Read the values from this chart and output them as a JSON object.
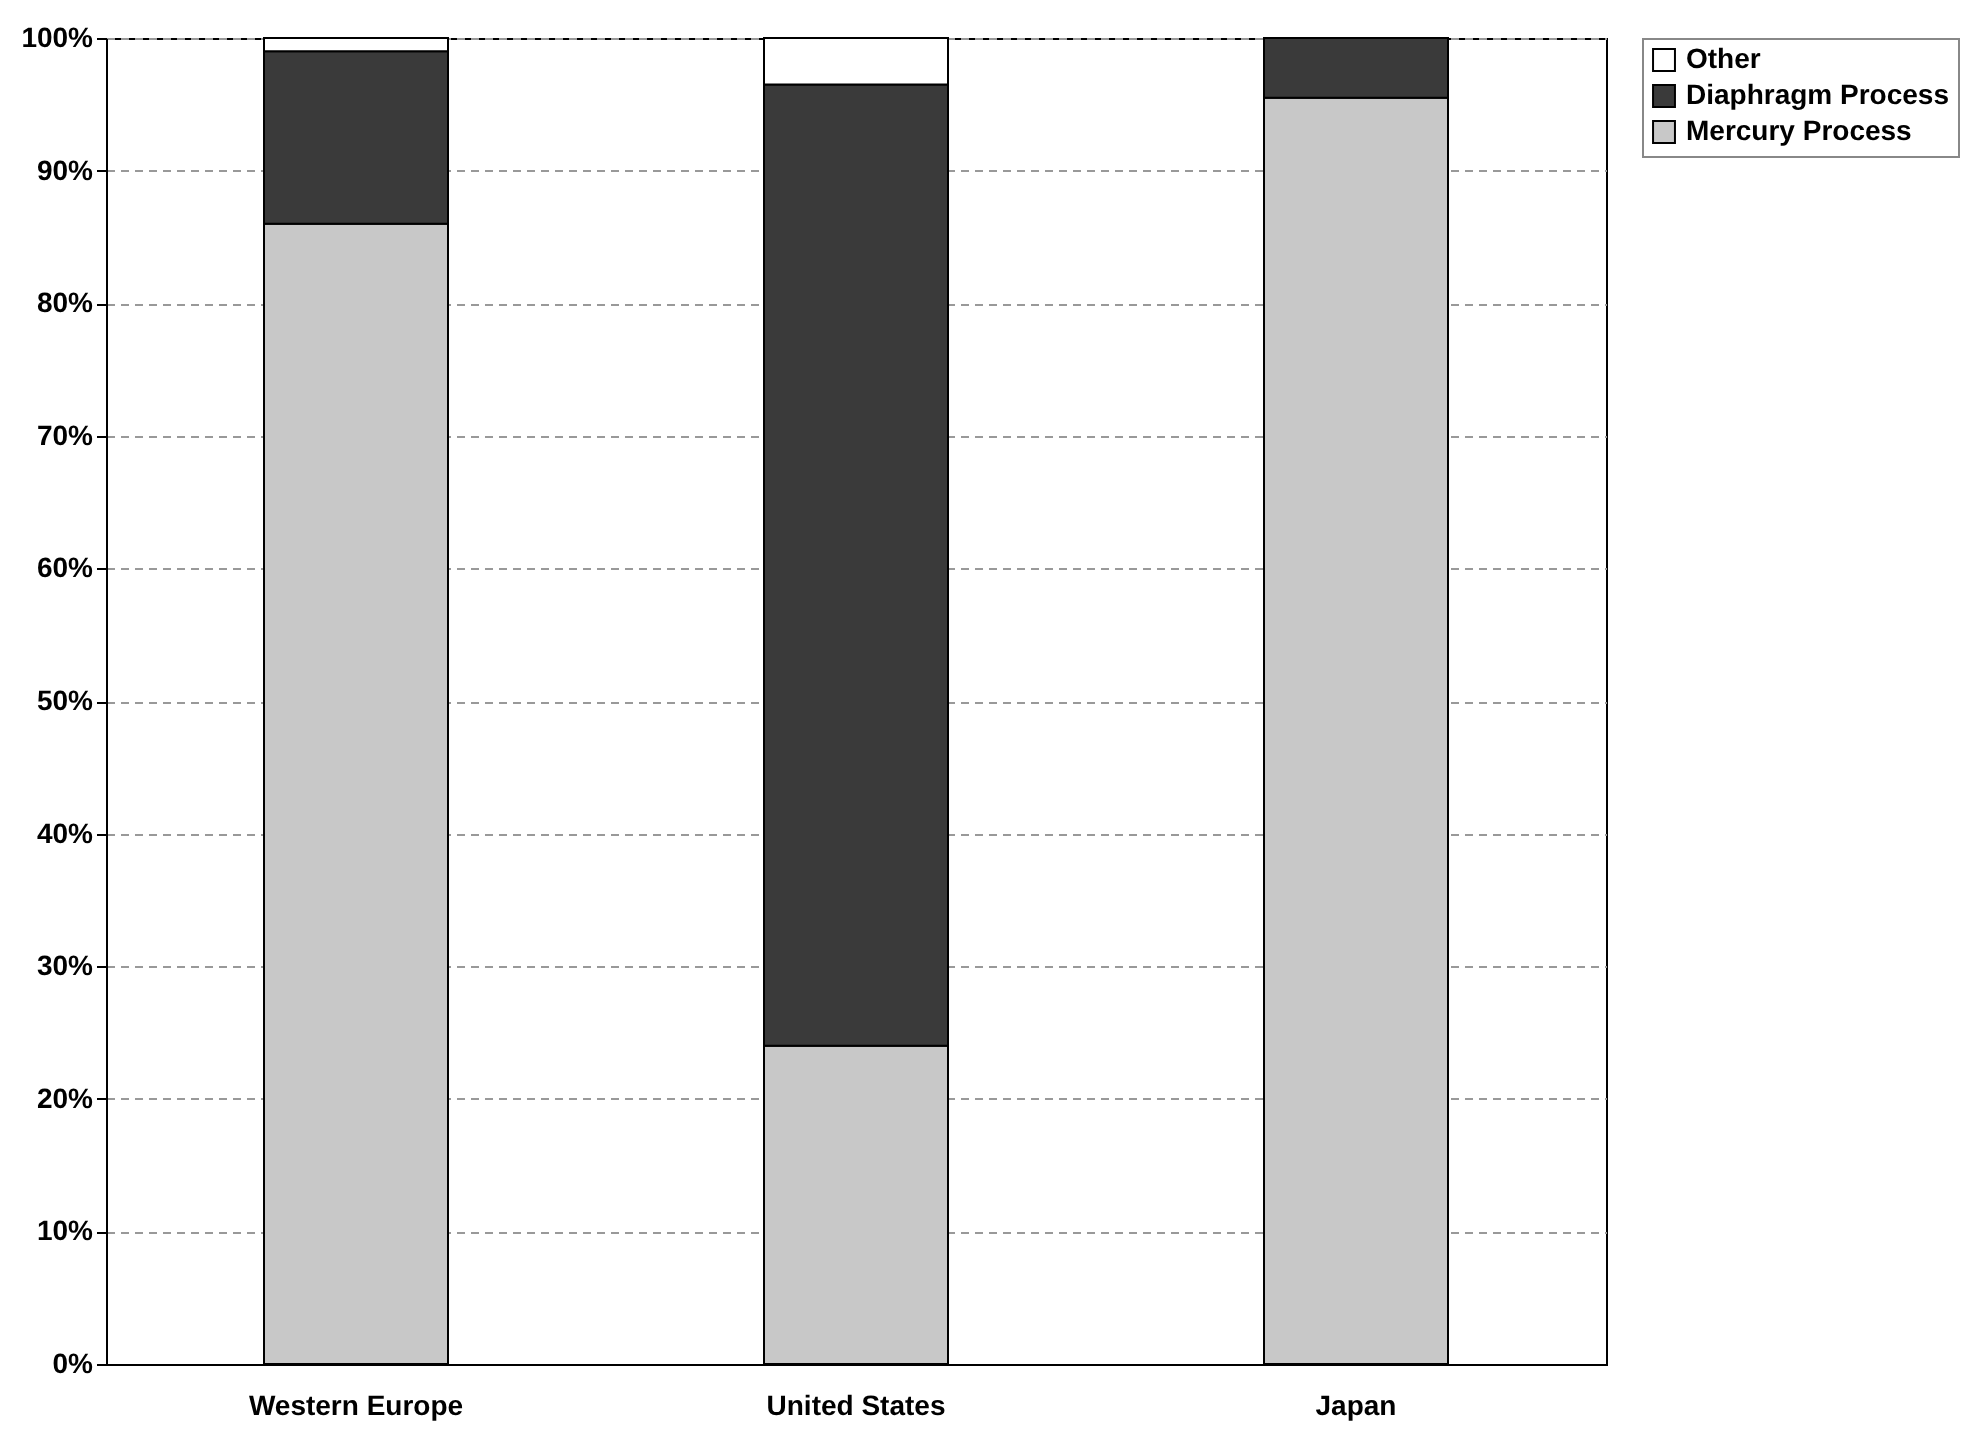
{
  "chart_data": {
    "type": "bar",
    "stacked": true,
    "categories": [
      "Western Europe",
      "United States",
      "Japan"
    ],
    "series": [
      {
        "name": "Mercury Process",
        "color": "#c8c8c8",
        "values": [
          86,
          24,
          95.5
        ]
      },
      {
        "name": "Diaphragm Process",
        "color": "#3a3a3a",
        "values": [
          13,
          72.5,
          4.5
        ]
      },
      {
        "name": "Other",
        "color": "#ffffff",
        "values": [
          1,
          3.5,
          null
        ]
      }
    ],
    "ylim": [
      0,
      100
    ],
    "yticks": [
      {
        "value": 0,
        "label": "0%"
      },
      {
        "value": 10,
        "label": "10%"
      },
      {
        "value": 20,
        "label": "20%"
      },
      {
        "value": 30,
        "label": "30%"
      },
      {
        "value": 40,
        "label": "40%"
      },
      {
        "value": 50,
        "label": "50%"
      },
      {
        "value": 60,
        "label": "60%"
      },
      {
        "value": 70,
        "label": "70%"
      },
      {
        "value": 80,
        "label": "80%"
      },
      {
        "value": 90,
        "label": "90%"
      },
      {
        "value": 100,
        "label": "100%"
      }
    ],
    "grid": "y",
    "legend": "right"
  }
}
